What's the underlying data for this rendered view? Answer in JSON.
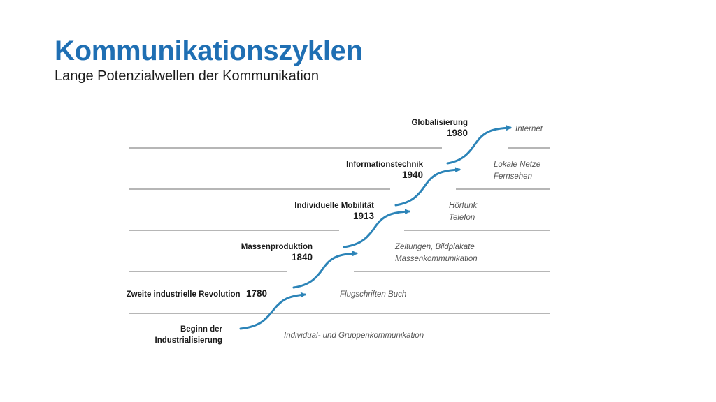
{
  "header": {
    "title": "Kommunikationszyklen",
    "subtitle": "Lange Potenzialwellen der Kommunikation"
  },
  "colors": {
    "title": "#1f6fb3",
    "wave": "#2c84b8",
    "line": "#8a8a8a"
  },
  "cycles": [
    {
      "label_lines": [
        "Beginn der",
        "Industrialisierung"
      ],
      "media_lines": [
        "Individual- und Gruppenkommunikation"
      ]
    },
    {
      "label_lines": [
        "Zweite industrielle Revolution"
      ],
      "year": "1780",
      "media_lines": [
        "Flugschriften Buch"
      ]
    },
    {
      "label_lines": [
        "Massenproduktion"
      ],
      "year": "1840",
      "media_lines": [
        "Zeitungen, Bildplakate",
        "Massenkommunikation"
      ]
    },
    {
      "label_lines": [
        "Individuelle Mobilität"
      ],
      "year": "1913",
      "media_lines": [
        "Hörfunk",
        "Telefon"
      ]
    },
    {
      "label_lines": [
        "Informationstechnik"
      ],
      "year": "1940",
      "media_lines": [
        "Lokale Netze",
        "Fernsehen"
      ]
    },
    {
      "label_lines": [
        "Globalisierung"
      ],
      "year": "1980",
      "media_lines": [
        "Internet"
      ]
    }
  ]
}
